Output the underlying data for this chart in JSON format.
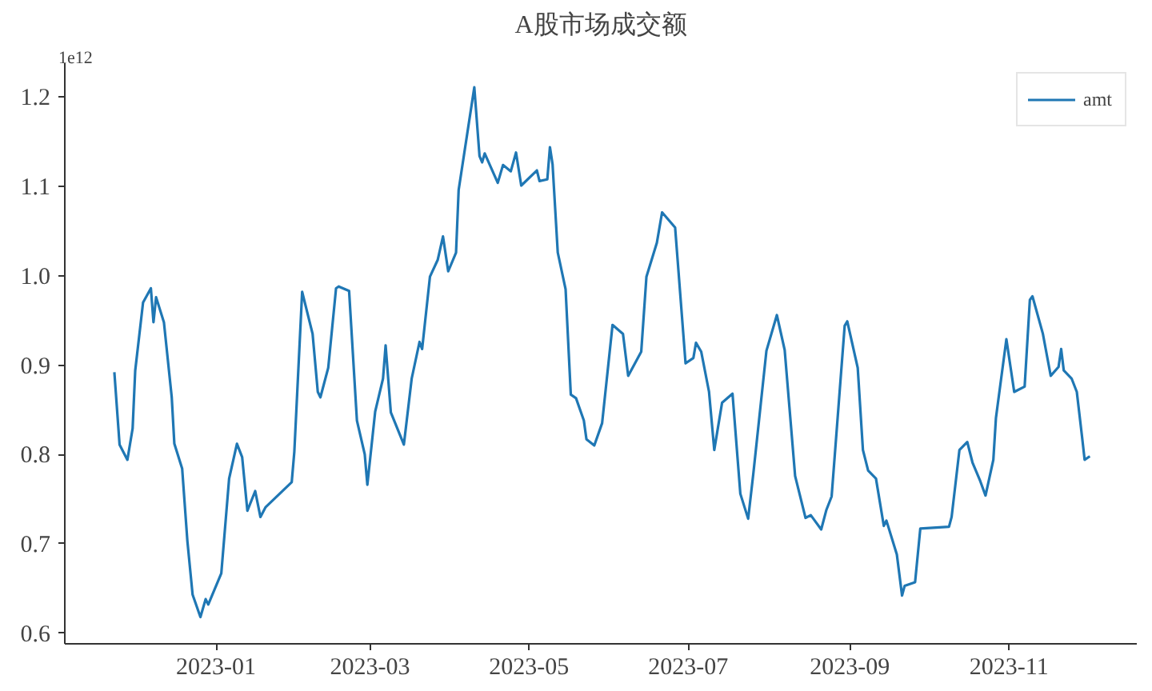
{
  "chart_data": {
    "type": "line",
    "title": "A股市场成交额",
    "annotations": [
      "1e12"
    ],
    "x": [
      "2022-11-23",
      "2022-11-25",
      "2022-11-28",
      "2022-11-30",
      "2022-12-01",
      "2022-12-04",
      "2022-12-07",
      "2022-12-08",
      "2022-12-09",
      "2022-12-12",
      "2022-12-15",
      "2022-12-16",
      "2022-12-19",
      "2022-12-21",
      "2022-12-23",
      "2022-12-26",
      "2022-12-28",
      "2022-12-29",
      "2023-01-03",
      "2023-01-06",
      "2023-01-09",
      "2023-01-11",
      "2023-01-13",
      "2023-01-16",
      "2023-01-18",
      "2023-01-20",
      "2023-01-30",
      "2023-01-31",
      "2023-02-03",
      "2023-02-07",
      "2023-02-09",
      "2023-02-10",
      "2023-02-13",
      "2023-02-16",
      "2023-02-17",
      "2023-02-21",
      "2023-02-24",
      "2023-02-27",
      "2023-02-28",
      "2023-03-03",
      "2023-03-06",
      "2023-03-07",
      "2023-03-09",
      "2023-03-14",
      "2023-03-17",
      "2023-03-20",
      "2023-03-21",
      "2023-03-24",
      "2023-03-27",
      "2023-03-29",
      "2023-03-31",
      "2023-04-03",
      "2023-04-04",
      "2023-04-10",
      "2023-04-12",
      "2023-04-13",
      "2023-04-14",
      "2023-04-19",
      "2023-04-21",
      "2023-04-24",
      "2023-04-26",
      "2023-04-28",
      "2023-05-04",
      "2023-05-05",
      "2023-05-08",
      "2023-05-09",
      "2023-05-10",
      "2023-05-12",
      "2023-05-15",
      "2023-05-17",
      "2023-05-19",
      "2023-05-22",
      "2023-05-23",
      "2023-05-26",
      "2023-05-29",
      "2023-06-02",
      "2023-06-06",
      "2023-06-08",
      "2023-06-13",
      "2023-06-15",
      "2023-06-19",
      "2023-06-21",
      "2023-06-26",
      "2023-06-30",
      "2023-07-03",
      "2023-07-04",
      "2023-07-06",
      "2023-07-09",
      "2023-07-11",
      "2023-07-14",
      "2023-07-18",
      "2023-07-21",
      "2023-07-24",
      "2023-07-26",
      "2023-07-31",
      "2023-08-04",
      "2023-08-07",
      "2023-08-11",
      "2023-08-15",
      "2023-08-17",
      "2023-08-21",
      "2023-08-23",
      "2023-08-25",
      "2023-08-30",
      "2023-08-31",
      "2023-09-04",
      "2023-09-06",
      "2023-09-08",
      "2023-09-11",
      "2023-09-14",
      "2023-09-15",
      "2023-09-19",
      "2023-09-21",
      "2023-09-22",
      "2023-09-26",
      "2023-09-28",
      "2023-10-09",
      "2023-10-10",
      "2023-10-13",
      "2023-10-16",
      "2023-10-18",
      "2023-10-21",
      "2023-10-23",
      "2023-10-26",
      "2023-10-27",
      "2023-10-31",
      "2023-11-03",
      "2023-11-07",
      "2023-11-09",
      "2023-11-10",
      "2023-11-14",
      "2023-11-17",
      "2023-11-20",
      "2023-11-21",
      "2023-11-22",
      "2023-11-25",
      "2023-11-27",
      "2023-11-29",
      "2023-11-30",
      "2023-12-02"
    ],
    "series": [
      {
        "name": "amt",
        "color": "#1f77b4",
        "values": [
          0.892,
          0.811,
          0.794,
          0.829,
          0.894,
          0.97,
          0.986,
          0.948,
          0.976,
          0.948,
          0.864,
          0.812,
          0.784,
          0.703,
          0.643,
          0.618,
          0.638,
          0.632,
          0.667,
          0.773,
          0.812,
          0.797,
          0.737,
          0.759,
          0.73,
          0.741,
          0.769,
          0.803,
          0.982,
          0.935,
          0.87,
          0.864,
          0.897,
          0.986,
          0.988,
          0.983,
          0.838,
          0.8,
          0.766,
          0.848,
          0.885,
          0.922,
          0.847,
          0.811,
          0.885,
          0.926,
          0.918,
          0.999,
          1.018,
          1.044,
          1.005,
          1.026,
          1.096,
          1.211,
          1.134,
          1.127,
          1.137,
          1.104,
          1.124,
          1.117,
          1.138,
          1.101,
          1.118,
          1.106,
          1.108,
          1.144,
          1.125,
          1.026,
          0.985,
          0.867,
          0.863,
          0.838,
          0.817,
          0.81,
          0.835,
          0.945,
          0.935,
          0.888,
          0.915,
          0.999,
          1.037,
          1.071,
          1.054,
          0.902,
          0.908,
          0.925,
          0.915,
          0.87,
          0.805,
          0.858,
          0.868,
          0.756,
          0.728,
          0.779,
          0.916,
          0.956,
          0.917,
          0.776,
          0.729,
          0.732,
          0.716,
          0.738,
          0.753,
          0.944,
          0.949,
          0.897,
          0.805,
          0.782,
          0.773,
          0.72,
          0.726,
          0.688,
          0.642,
          0.653,
          0.657,
          0.717,
          0.719,
          0.73,
          0.805,
          0.814,
          0.791,
          0.77,
          0.754,
          0.794,
          0.841,
          0.929,
          0.87,
          0.876,
          0.973,
          0.977,
          0.935,
          0.888,
          0.898,
          0.918,
          0.894,
          0.885,
          0.87,
          0.82,
          0.794,
          0.798
        ]
      }
    ],
    "xlim": [
      "2022-11-04",
      "2023-12-20"
    ],
    "xticks": [
      "2023-01",
      "2023-03",
      "2023-05",
      "2023-07",
      "2023-09",
      "2023-11"
    ],
    "ylim": [
      0.588,
      1.238
    ],
    "yticks": [
      0.6,
      0.7,
      0.8,
      0.9,
      {
        "value": 1.0,
        "label": "1.0"
      },
      1.1,
      1.2
    ],
    "grid": false,
    "legend": "top right",
    "marker": "none",
    "line_style": "solid"
  }
}
